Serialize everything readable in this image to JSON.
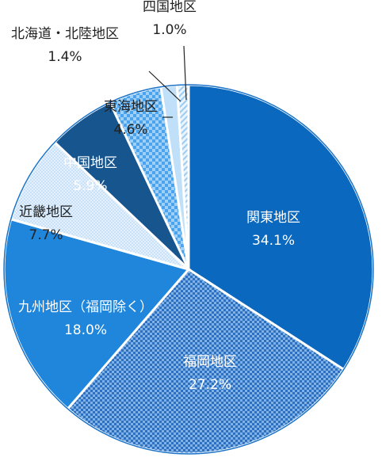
{
  "chart_data": {
    "type": "pie",
    "title": "",
    "unit": "%",
    "slices": [
      {
        "name": "関東地区",
        "value": 34.1,
        "value_label": "34.1%",
        "color": "#0a68bf",
        "pattern": "solid"
      },
      {
        "name": "福岡地区",
        "value": 27.2,
        "value_label": "27.2%",
        "color": "#3d7fcf",
        "pattern": "checker-blue"
      },
      {
        "name": "九州地区（福岡除く）",
        "value": 18.0,
        "value_label": "18.0%",
        "color": "#1f86dc",
        "pattern": "solid"
      },
      {
        "name": "近畿地区",
        "value": 7.7,
        "value_label": "7.7%",
        "color": "#cfe6fa",
        "pattern": "dotted-light"
      },
      {
        "name": "中国地区",
        "value": 5.9,
        "value_label": "5.9%",
        "color": "#17558f",
        "pattern": "solid"
      },
      {
        "name": "東海地区",
        "value": 4.6,
        "value_label": "4.6%",
        "color": "#5aaef0",
        "pattern": "checker-light"
      },
      {
        "name": "北海道・北陸地区",
        "value": 1.4,
        "value_label": "1.4%",
        "color": "#bfe0f8",
        "pattern": "light"
      },
      {
        "name": "四国地区",
        "value": 1.0,
        "value_label": "1.0%",
        "color": "#d8ecfb",
        "pattern": "stripe-light"
      }
    ],
    "start": "12 o'clock",
    "direction": "clockwise",
    "border_color": "#1a73c9"
  }
}
